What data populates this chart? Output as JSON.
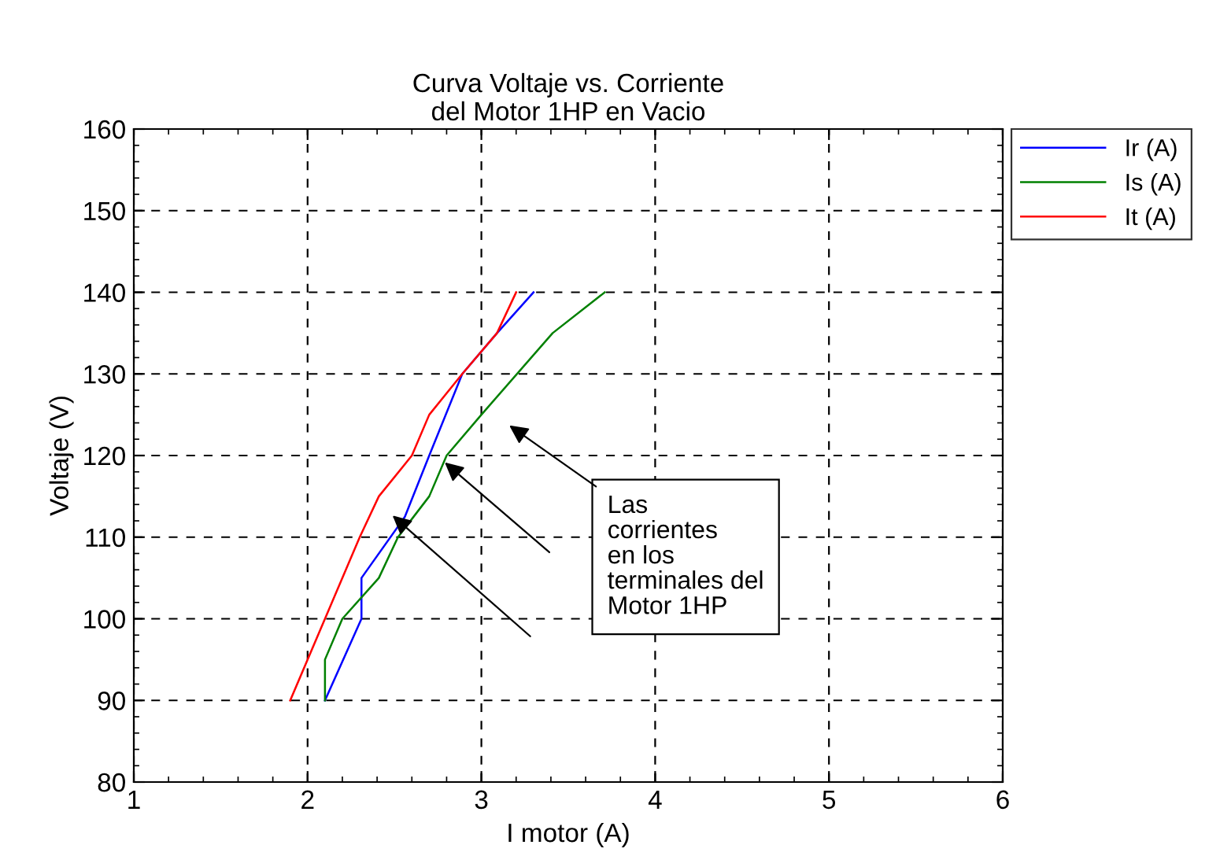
{
  "chart_data": {
    "type": "line",
    "title": "Curva Voltaje vs. Corriente\ndel Motor 1HP en Vacio",
    "xlabel": "I motor (A)",
    "ylabel": "Voltaje (V)",
    "xlim": [
      1,
      6
    ],
    "xticks": [
      1,
      2,
      3,
      4,
      5,
      6
    ],
    "ylim": [
      80,
      160
    ],
    "yticks": [
      80,
      90,
      100,
      110,
      120,
      130,
      140,
      150,
      160
    ],
    "grid": true,
    "legend": "top right",
    "line_style": "solid",
    "marker": "none",
    "series": [
      {
        "name": "Ir (A)",
        "color": "#0000ff",
        "x": [
          2.1,
          2.31,
          2.31,
          2.56,
          2.7,
          2.89,
          3.09,
          3.3
        ],
        "values": [
          90,
          100,
          105,
          112.5,
          120,
          130,
          135,
          140
        ]
      },
      {
        "name": "Is (A)",
        "color": "#008000",
        "x": [
          2.1,
          2.1,
          2.2,
          2.41,
          2.52,
          2.7,
          2.8,
          3.0,
          3.41,
          3.71
        ],
        "values": [
          90,
          95,
          100,
          105,
          110,
          115,
          120,
          125,
          135,
          140
        ]
      },
      {
        "name": "It (A)",
        "color": "#ff0000",
        "x": [
          1.9,
          2.3,
          2.41,
          2.6,
          2.7,
          2.89,
          3.09,
          3.2
        ],
        "values": [
          90,
          110,
          115,
          120,
          125,
          130,
          135,
          140
        ]
      }
    ],
    "annotations": [
      "Las\ncorrientes\nen los\nterminales del\nMotor 1HP"
    ]
  }
}
